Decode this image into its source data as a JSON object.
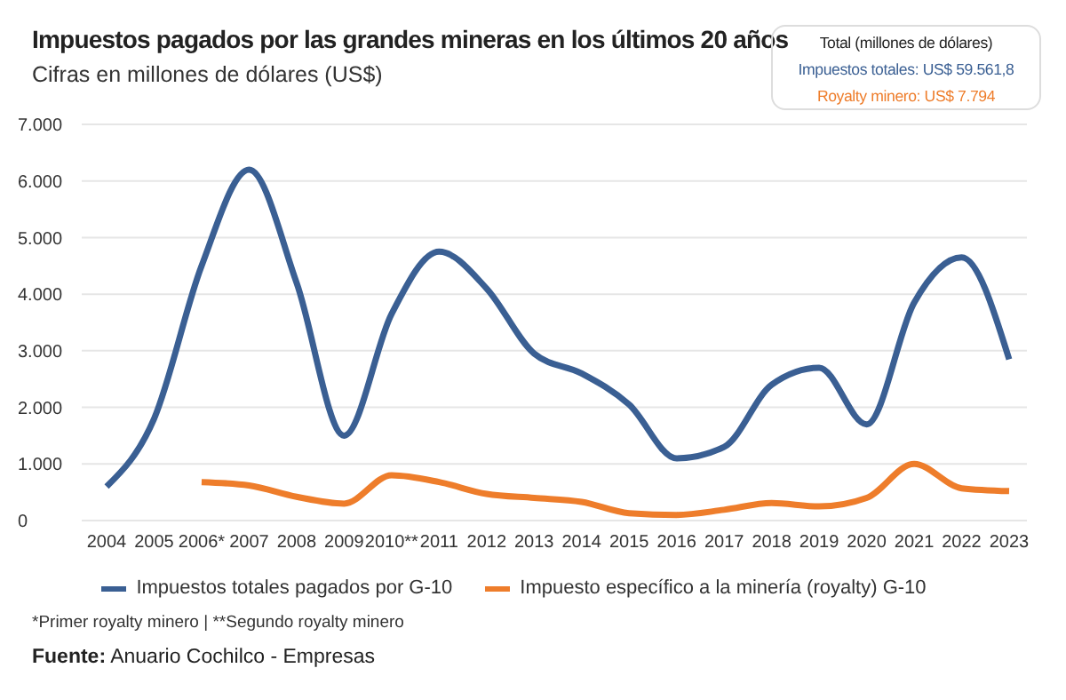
{
  "chart_data": {
    "type": "line",
    "title": "Impuestos pagados por las grandes mineras en los últimos 20 años",
    "subtitle": "Cifras en millones de dólares (US$)",
    "categories": [
      "2004",
      "2005",
      "2006*",
      "2007",
      "2008",
      "2009",
      "2010**",
      "2011",
      "2012",
      "2013",
      "2014",
      "2015",
      "2016",
      "2017",
      "2018",
      "2019",
      "2020",
      "2021",
      "2022",
      "2023"
    ],
    "series": [
      {
        "name": "Impuestos totales pagados por G-10",
        "color": "#3a5f93",
        "values": [
          600,
          1800,
          4500,
          6200,
          4200,
          1500,
          3650,
          4750,
          4100,
          2950,
          2600,
          2050,
          1100,
          1300,
          2400,
          2700,
          1700,
          3850,
          4650,
          2850
        ]
      },
      {
        "name": "Impuesto específico a la minería (royalty) G-10",
        "color": "#ee7d2b",
        "values": [
          null,
          null,
          680,
          620,
          420,
          300,
          800,
          680,
          470,
          400,
          330,
          130,
          100,
          190,
          310,
          250,
          400,
          1000,
          570,
          520
        ]
      }
    ],
    "ylim": [
      0,
      7000
    ],
    "yticks": [
      0,
      {
        "value": 1000,
        "label": "1.000"
      },
      {
        "value": 2000,
        "label": "2.000"
      },
      {
        "value": 3000,
        "label": "3.000"
      },
      {
        "value": 4000,
        "label": "4.000"
      },
      {
        "value": 5000,
        "label": "5.000"
      },
      {
        "value": 6000,
        "label": "6.000"
      },
      {
        "value": 7000,
        "label": "7.000"
      }
    ],
    "grid": "y",
    "legend": "bottom",
    "marker": "none",
    "line_style": "solid",
    "annotations": [
      "Total (millones de dólares)",
      "Impuestos totales: US$ 59.561,8",
      "Royalty minero: US$ 7.794",
      "*Primer royalty minero | **Segundo royalty minero",
      "Fuente: Anuario Cochilco - Empresas"
    ]
  }
}
